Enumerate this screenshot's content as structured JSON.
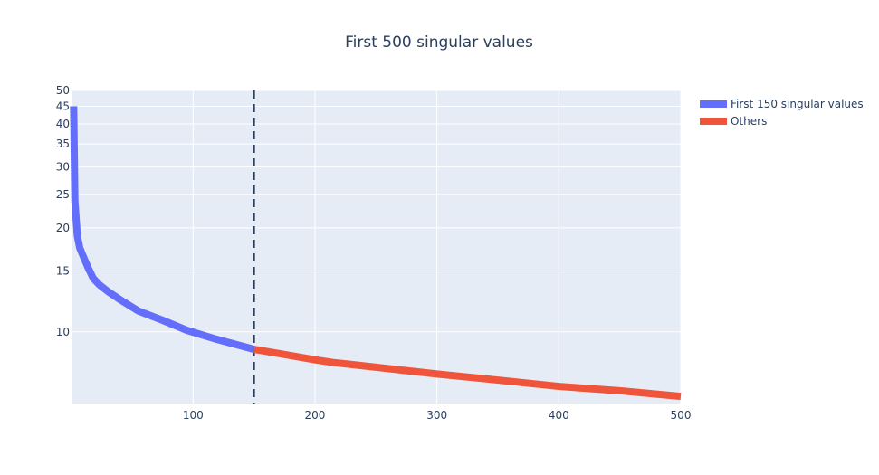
{
  "chart_data": {
    "type": "line",
    "title": "First 500 singular values",
    "xlabel": "",
    "ylabel": "",
    "xlim": [
      1,
      500
    ],
    "ylim": [
      6.2,
      50
    ],
    "y_scale": "log",
    "grid": true,
    "legend_position": "top-right",
    "x_ticks": [
      "100",
      "200",
      "300",
      "400",
      "500"
    ],
    "y_ticks": [
      "10",
      "15",
      "20",
      "25",
      "30",
      "35",
      "40",
      "45",
      "50"
    ],
    "series": [
      {
        "name": "First 150 singular values",
        "color": "#636efa",
        "x": [
          2,
          3,
          5,
          7,
          10,
          14,
          18,
          23,
          30,
          40,
          55,
          75,
          95,
          120,
          150
        ],
        "y": [
          45,
          24,
          19,
          17.5,
          16.5,
          15.3,
          14.3,
          13.7,
          13.1,
          12.4,
          11.5,
          10.8,
          10.1,
          9.5,
          8.9
        ]
      },
      {
        "name": "Others",
        "color": "#ef553b",
        "x": [
          150,
          175,
          200,
          215,
          250,
          300,
          350,
          400,
          450,
          500
        ],
        "y": [
          8.9,
          8.6,
          8.3,
          8.15,
          7.9,
          7.55,
          7.25,
          6.95,
          6.75,
          6.5
        ]
      }
    ],
    "reference_line": {
      "x": 150,
      "style": "dashed",
      "color": "#2a3f5f"
    }
  }
}
